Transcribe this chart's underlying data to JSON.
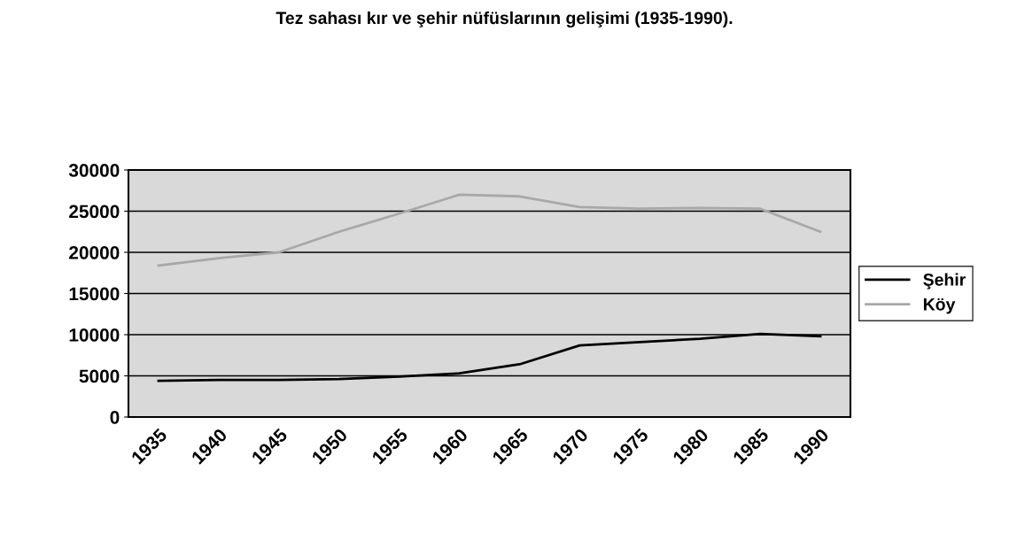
{
  "chart_data": {
    "type": "line",
    "title": "Tez sahası kır ve şehir nüfüslarının gelişimi (1935-1990).",
    "categories": [
      "1935",
      "1940",
      "1945",
      "1950",
      "1955",
      "1960",
      "1965",
      "1970",
      "1975",
      "1980",
      "1985",
      "1990"
    ],
    "series": [
      {
        "name": "Şehir",
        "color": "#000000",
        "values": [
          4400,
          4500,
          4500,
          4600,
          4900,
          5300,
          6400,
          8700,
          9100,
          9500,
          10100,
          9800
        ]
      },
      {
        "name": "Köy",
        "color": "#a8a8a8",
        "values": [
          18400,
          19300,
          20000,
          22500,
          24700,
          27000,
          26800,
          25500,
          25300,
          25400,
          25300,
          22500
        ]
      }
    ],
    "ylim": [
      0,
      30000
    ],
    "yticks": [
      0,
      5000,
      10000,
      15000,
      20000,
      25000,
      30000
    ],
    "grid": "y",
    "legend": "right",
    "marker": "none",
    "line_style": "solid"
  }
}
